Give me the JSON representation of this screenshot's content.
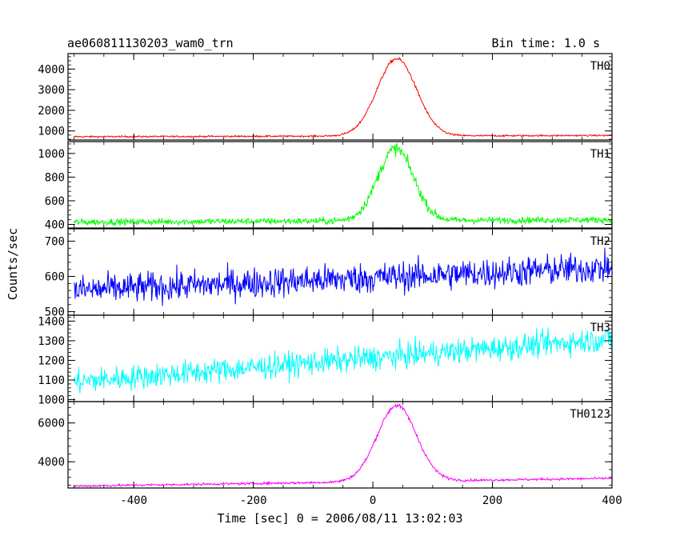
{
  "header": {
    "title": "ae060811130203_wam0_trn",
    "bin_time": "Bin time: 1.0 s"
  },
  "chart_data": {
    "type": "line",
    "xlabel": "Time [sec] 0 = 2006/08/11 13:02:03",
    "ylabel": "Counts/sec",
    "xlim": [
      -510,
      400
    ],
    "x_ticks": [
      -400,
      -200,
      0,
      200,
      400
    ],
    "x_range": [
      -500,
      400
    ],
    "grid": false,
    "panels": [
      {
        "name": "TH0",
        "color": "#ff0000",
        "ylim": [
          560,
          4750
        ],
        "y_ticks": [
          1000,
          2000,
          3000,
          4000
        ],
        "baseline_start": 720,
        "baseline_end": 780,
        "noise": 20,
        "peak_x": 40,
        "peak_y": 4500,
        "peak_width": 33
      },
      {
        "name": "TH1",
        "color": "#00ff00",
        "ylim": [
          370,
          1100
        ],
        "y_ticks": [
          400,
          600,
          800,
          1000
        ],
        "baseline_start": 420,
        "baseline_end": 440,
        "noise": 14,
        "peak_x": 38,
        "peak_y": 1040,
        "peak_width": 30
      },
      {
        "name": "TH2",
        "color": "#0000ff",
        "ylim": [
          490,
          735
        ],
        "y_ticks": [
          500,
          600,
          700
        ],
        "baseline_start": 560,
        "baseline_end": 625,
        "noise": 22,
        "peak_x": 40,
        "peak_y": 0,
        "peak_width": 30
      },
      {
        "name": "TH3",
        "color": "#00ffff",
        "ylim": [
          990,
          1430
        ],
        "y_ticks": [
          1000,
          1100,
          1200,
          1300,
          1400
        ],
        "baseline_start": 1090,
        "baseline_end": 1310,
        "noise": 32,
        "peak_x": 40,
        "peak_y": 0,
        "peak_width": 30
      },
      {
        "name": "TH0123",
        "color": "#ff00ff",
        "ylim": [
          2650,
          7100
        ],
        "y_ticks": [
          4000,
          6000
        ],
        "baseline_start": 2750,
        "baseline_end": 3150,
        "noise": 30,
        "peak_x": 40,
        "peak_y": 6900,
        "peak_width": 33
      }
    ]
  }
}
